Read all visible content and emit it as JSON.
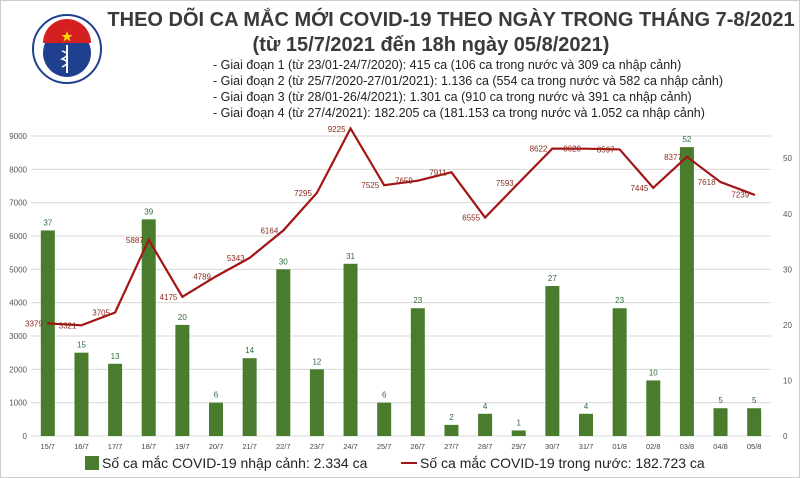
{
  "header": {
    "logo_text": "BỘ Y TẾ · MINISTRY OF HEALTH",
    "title_line1": "THEO DÕI CA MẮC MỚI COVID-19 THEO NGÀY TRONG THÁNG 7-8/2021",
    "title_line2": "(từ 15/7/2021 đến 18h ngày 05/8/2021)",
    "phases": [
      "- Giai đoạn 1 (từ 23/01-24/7/2020): 415 ca (106 ca trong nước và 309 ca nhập cảnh)",
      "- Giai đoạn 2 (từ 25/7/2020-27/01/2021): 1.136 ca (554 ca trong nước và 582 ca nhập cảnh)",
      "- Giai đoạn 3 (từ 28/01-26/4/2021): 1.301 ca (910 ca trong nước và 391 ca nhập cảnh)",
      "- Giai đoạn 4 (từ 27/4/2021): 182.205 ca (181.153 ca trong nước và 1.052 ca nhập cảnh)"
    ]
  },
  "colors": {
    "bar": "#4a7c2e",
    "line": "#a31515",
    "grid": "#d9d9d9",
    "bar_label": "#2e6b3a",
    "line_label": "#8b2a1a"
  },
  "chart_data": {
    "type": "bar+line",
    "categories": [
      "15/7",
      "16/7",
      "17/7",
      "18/7",
      "19/7",
      "20/7",
      "21/7",
      "22/7",
      "23/7",
      "24/7",
      "25/7",
      "26/7",
      "27/7",
      "28/7",
      "29/7",
      "30/7",
      "31/7",
      "01/8",
      "02/8",
      "03/8",
      "04/8",
      "05/8"
    ],
    "series": [
      {
        "name": "Số ca mắc COVID-19 nhập cảnh: 2.334 ca",
        "type": "bar",
        "axis": "right",
        "values": [
          37,
          15,
          13,
          39,
          20,
          6,
          14,
          30,
          12,
          31,
          6,
          23,
          2,
          4,
          1,
          27,
          4,
          23,
          10,
          52,
          5,
          5
        ]
      },
      {
        "name": "Số ca mắc COVID-19 trong nước: 182.723 ca",
        "type": "line",
        "axis": "left",
        "values": [
          3379,
          3321,
          3705,
          5887,
          4175,
          4789,
          5343,
          6164,
          7295,
          9225,
          7525,
          7659,
          7911,
          6555,
          7593,
          8622,
          8620,
          8597,
          7445,
          8377,
          7618,
          7239
        ]
      }
    ],
    "left_axis": {
      "ylim": [
        0,
        9000
      ],
      "ticks": [
        0,
        1000,
        2000,
        3000,
        4000,
        5000,
        6000,
        7000,
        8000,
        9000
      ]
    },
    "right_axis": {
      "ylim": [
        0,
        54
      ],
      "ticks": [
        0,
        10,
        20,
        30,
        40,
        50
      ]
    },
    "grid": true,
    "legend": "bottom"
  }
}
